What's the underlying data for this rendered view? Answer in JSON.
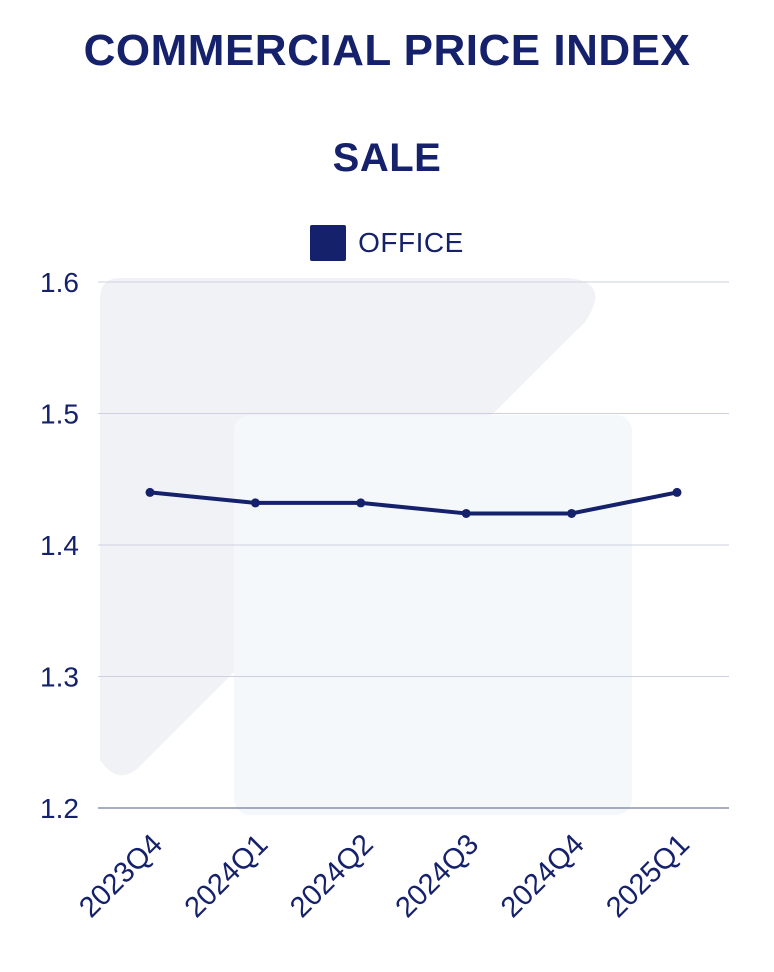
{
  "colors": {
    "series": "#15216b",
    "grid": "#cdd0e0",
    "watermark_dark": "#f1f2f6",
    "watermark_light": "#f4f8fb"
  },
  "chart_data": {
    "type": "line",
    "title": "COMMERCIAL PRICE INDEX",
    "subtitle": "SALE",
    "categories": [
      "2023Q4",
      "2024Q1",
      "2024Q2",
      "2024Q3",
      "2024Q4",
      "2025Q1"
    ],
    "series": [
      {
        "name": "OFFICE",
        "values": [
          1.44,
          1.432,
          1.432,
          1.424,
          1.424,
          1.44
        ]
      }
    ],
    "ylim": [
      1.2,
      1.6
    ],
    "yticks": [
      "1.2",
      "1.3",
      "1.4",
      "1.5",
      "1.6"
    ],
    "grid": true,
    "legend": "top-center"
  }
}
